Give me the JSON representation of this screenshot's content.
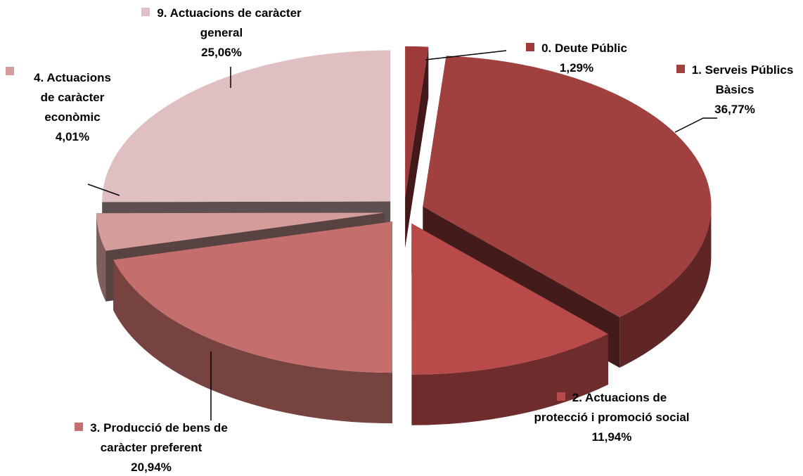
{
  "chart_data": {
    "type": "pie",
    "categories": [
      "0. Deute Públic",
      "1. Serveis Públics Bàsics",
      "2. Actuacions de protecció i promoció social",
      "3. Producció de bens de caràcter preferent",
      "4. Actuacions de caràcter econòmic",
      "9. Actuacions de caràcter general"
    ],
    "values": [
      1.29,
      36.77,
      11.94,
      20.94,
      4.01,
      25.06
    ],
    "value_labels": [
      "1,29%",
      "36,77%",
      "11,94%",
      "20,94%",
      "4,01%",
      "25,06%"
    ],
    "colors": [
      "#a03a3a",
      "#a0403f",
      "#b84a49",
      "#c46f6d",
      "#d49d9c",
      "#dfbfc1"
    ]
  }
}
